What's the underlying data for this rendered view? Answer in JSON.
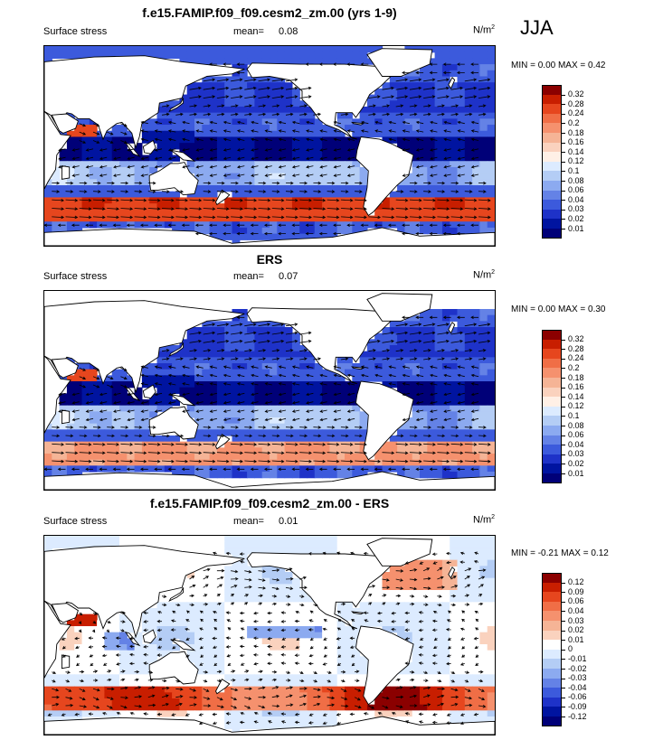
{
  "season": "JJA",
  "units_base": "N/m",
  "units_exp": "2",
  "chart_data": [
    {
      "type": "heatmap",
      "title": "f.e15.FAMIP.f09_f09.cesm2_zm.00 (yrs 1-9)",
      "variable": "Surface stress",
      "mean_label": "mean=",
      "mean": "0.08",
      "minmax_label": "MIN =  0.00 MAX =  0.42",
      "min": 0.0,
      "max": 0.42,
      "levels": [
        "0.32",
        "0.28",
        "0.24",
        "0.2",
        "0.18",
        "0.16",
        "0.14",
        "0.12",
        "0.1",
        "0.08",
        "0.06",
        "0.04",
        "0.03",
        "0.02",
        "0.01"
      ],
      "colors": [
        "#8b0000",
        "#c81e00",
        "#e6461e",
        "#f06e46",
        "#f5916e",
        "#f5b496",
        "#fad2be",
        "#fff0e6",
        "#dcebff",
        "#b4cdf5",
        "#8caaf0",
        "#6482e6",
        "#3c5adc",
        "#1e32c8",
        "#0014a0",
        "#000078"
      ]
    },
    {
      "type": "heatmap",
      "title": "ERS",
      "variable": "Surface stress",
      "mean_label": "mean=",
      "mean": "0.07",
      "minmax_label": "MIN =  0.00 MAX =  0.30",
      "min": 0.0,
      "max": 0.3,
      "levels": [
        "0.32",
        "0.28",
        "0.24",
        "0.2",
        "0.18",
        "0.16",
        "0.14",
        "0.12",
        "0.1",
        "0.08",
        "0.06",
        "0.04",
        "0.03",
        "0.02",
        "0.01"
      ],
      "colors": [
        "#8b0000",
        "#c81e00",
        "#e6461e",
        "#f06e46",
        "#f5916e",
        "#f5b496",
        "#fad2be",
        "#fff0e6",
        "#dcebff",
        "#b4cdf5",
        "#8caaf0",
        "#6482e6",
        "#3c5adc",
        "#1e32c8",
        "#0014a0",
        "#000078"
      ]
    },
    {
      "type": "heatmap",
      "title": "f.e15.FAMIP.f09_f09.cesm2_zm.00 - ERS",
      "variable": "Surface stress",
      "mean_label": "mean=",
      "mean": "0.01",
      "minmax_label": "MIN = -0.21 MAX =  0.12",
      "min": -0.21,
      "max": 0.12,
      "levels": [
        "0.12",
        "0.09",
        "0.06",
        "0.04",
        "0.03",
        "0.02",
        "0.01",
        "0",
        "-0.01",
        "-0.02",
        "-0.03",
        "-0.04",
        "-0.06",
        "-0.09",
        "-0.12"
      ],
      "colors": [
        "#8b0000",
        "#c81e00",
        "#e6461e",
        "#f06e46",
        "#f5916e",
        "#f5b496",
        "#fad2be",
        "#ffffff",
        "#dcebff",
        "#b4cdf5",
        "#8caaf0",
        "#6482e6",
        "#3c5adc",
        "#1e32c8",
        "#0014a0",
        "#000078"
      ]
    }
  ]
}
